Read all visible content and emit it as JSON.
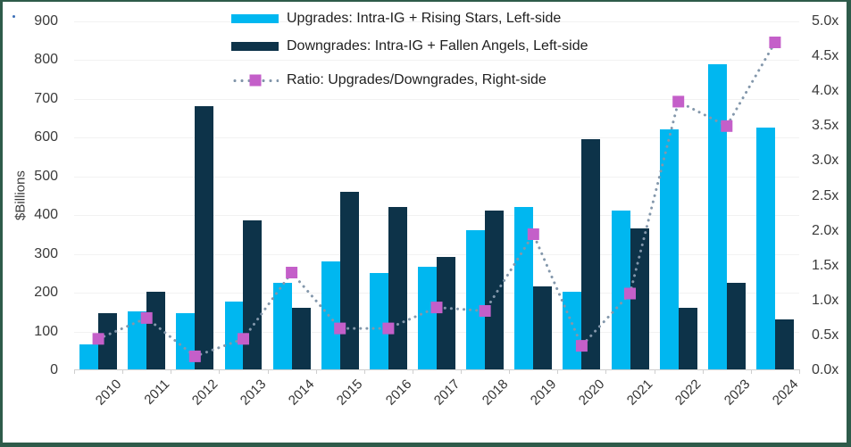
{
  "frame": {
    "border_color": "#2E5B4A",
    "background": "#FFFFFF"
  },
  "y_axis": {
    "title": "$Billions",
    "ticks": [
      "900",
      "800",
      "700",
      "600",
      "500",
      "400",
      "300",
      "200",
      "100",
      "0"
    ]
  },
  "right_axis": {
    "ticks": [
      "5.0x",
      "4.5x",
      "4.0x",
      "3.5x",
      "3.0x",
      "2.5x",
      "2.0x",
      "1.5x",
      "1.0x",
      "0.5x",
      "0.0x"
    ]
  },
  "legend": {
    "items": [
      {
        "label": "Upgrades: Intra-IG + Rising Stars, Left-side"
      },
      {
        "label": "Downgrades: Intra-IG + Fallen Angels, Left-side"
      },
      {
        "label": "Ratio: Upgrades/Downgrades, Right-side"
      }
    ]
  },
  "colors": {
    "upgrades": "#00B7F0",
    "downgrades": "#0D3349",
    "ratio_line": "#8397AB",
    "ratio_marker": "#C45FC9",
    "gridline": "#F2F2F2",
    "axis_line": "#CFCFCF",
    "text": "#3B3B3B"
  },
  "chart_data": {
    "type": "bar",
    "subtype": "bar+line combo, dual axis",
    "categories": [
      "2010",
      "2011",
      "2012",
      "2013",
      "2014",
      "2015",
      "2016",
      "2017",
      "2018",
      "2019",
      "2020",
      "2021",
      "2022",
      "2023",
      "2024"
    ],
    "series": [
      {
        "name": "Upgrades: Intra-IG + Rising Stars, Left-side",
        "type": "bar",
        "axis": "left",
        "color": "#00B7F0",
        "values": [
          65,
          150,
          145,
          175,
          225,
          280,
          250,
          265,
          360,
          420,
          200,
          410,
          620,
          790,
          625
        ]
      },
      {
        "name": "Downgrades: Intra-IG + Fallen Angels, Left-side",
        "type": "bar",
        "axis": "left",
        "color": "#0D3349",
        "values": [
          145,
          200,
          680,
          385,
          160,
          460,
          420,
          290,
          410,
          215,
          595,
          365,
          160,
          225,
          130
        ]
      },
      {
        "name": "Ratio: Upgrades/Downgrades, Right-side",
        "type": "line",
        "axis": "right",
        "style": "dotted",
        "marker": "square",
        "line_color": "#8397AB",
        "marker_color": "#C45FC9",
        "values": [
          0.45,
          0.75,
          0.2,
          0.45,
          1.4,
          0.6,
          0.6,
          0.9,
          0.85,
          1.95,
          0.35,
          1.1,
          3.85,
          3.5,
          4.7
        ]
      }
    ],
    "left_axis": {
      "label": "$Billions",
      "min": 0,
      "max": 900,
      "step": 100
    },
    "right_axis": {
      "min": 0.0,
      "max": 5.0,
      "step": 0.5,
      "suffix": "x"
    },
    "grid": true,
    "legend_position": "top-center"
  }
}
